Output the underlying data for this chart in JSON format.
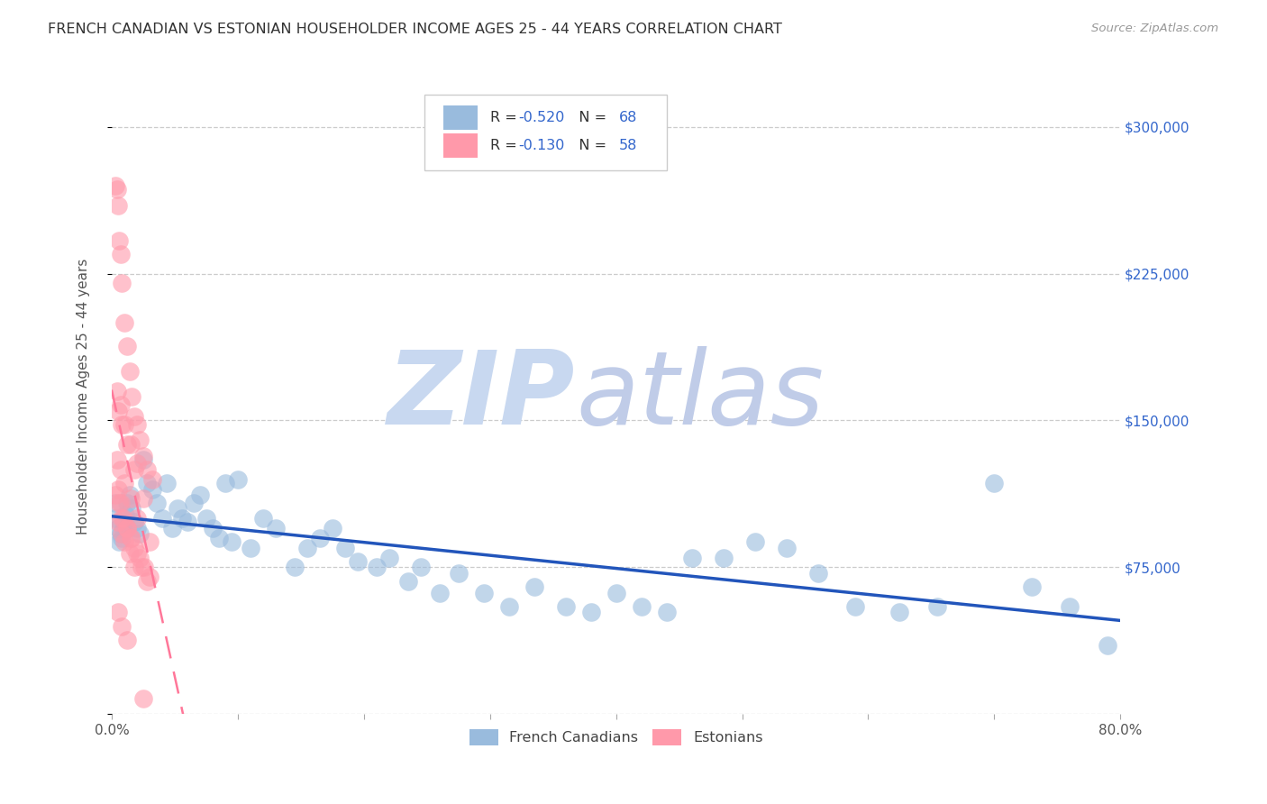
{
  "title": "FRENCH CANADIAN VS ESTONIAN HOUSEHOLDER INCOME AGES 25 - 44 YEARS CORRELATION CHART",
  "source": "Source: ZipAtlas.com",
  "ylabel": "Householder Income Ages 25 - 44 years",
  "xmin": 0.0,
  "xmax": 0.8,
  "ymin": 0,
  "ymax": 325000,
  "yticks": [
    0,
    75000,
    150000,
    225000,
    300000
  ],
  "ytick_labels_right": [
    "",
    "$75,000",
    "$150,000",
    "$225,000",
    "$300,000"
  ],
  "xticks": [
    0.0,
    0.1,
    0.2,
    0.3,
    0.4,
    0.5,
    0.6,
    0.7,
    0.8
  ],
  "r_french": -0.52,
  "n_french": 68,
  "r_estonian": -0.13,
  "n_estonian": 58,
  "color_blue": "#99BBDD",
  "color_pink": "#FF99AA",
  "color_blue_line": "#2255BB",
  "color_pink_line": "#FF7799",
  "watermark_zip_color": "#C8D8F0",
  "watermark_atlas_color": "#C0CCE8",
  "french_x": [
    0.002,
    0.003,
    0.005,
    0.006,
    0.007,
    0.008,
    0.009,
    0.01,
    0.011,
    0.012,
    0.014,
    0.016,
    0.018,
    0.02,
    0.022,
    0.025,
    0.028,
    0.032,
    0.036,
    0.04,
    0.044,
    0.048,
    0.052,
    0.056,
    0.06,
    0.065,
    0.07,
    0.075,
    0.08,
    0.085,
    0.09,
    0.095,
    0.1,
    0.11,
    0.12,
    0.13,
    0.145,
    0.155,
    0.165,
    0.175,
    0.185,
    0.195,
    0.21,
    0.22,
    0.235,
    0.245,
    0.26,
    0.275,
    0.295,
    0.315,
    0.335,
    0.36,
    0.38,
    0.4,
    0.42,
    0.44,
    0.46,
    0.485,
    0.51,
    0.535,
    0.56,
    0.59,
    0.625,
    0.655,
    0.7,
    0.73,
    0.76,
    0.79
  ],
  "french_y": [
    100000,
    108000,
    95000,
    88000,
    92000,
    90000,
    95000,
    98000,
    102000,
    108000,
    112000,
    105000,
    98000,
    95000,
    92000,
    130000,
    118000,
    115000,
    108000,
    100000,
    118000,
    95000,
    105000,
    100000,
    98000,
    108000,
    112000,
    100000,
    95000,
    90000,
    118000,
    88000,
    120000,
    85000,
    100000,
    95000,
    75000,
    85000,
    90000,
    95000,
    85000,
    78000,
    75000,
    80000,
    68000,
    75000,
    62000,
    72000,
    62000,
    55000,
    65000,
    55000,
    52000,
    62000,
    55000,
    52000,
    80000,
    80000,
    88000,
    85000,
    72000,
    55000,
    52000,
    55000,
    118000,
    65000,
    55000,
    35000
  ],
  "estonian_x": [
    0.003,
    0.004,
    0.005,
    0.006,
    0.007,
    0.008,
    0.01,
    0.012,
    0.014,
    0.016,
    0.018,
    0.02,
    0.022,
    0.025,
    0.028,
    0.032,
    0.005,
    0.007,
    0.009,
    0.012,
    0.015,
    0.018,
    0.022,
    0.026,
    0.03,
    0.005,
    0.008,
    0.01,
    0.014,
    0.018,
    0.003,
    0.006,
    0.008,
    0.012,
    0.016,
    0.02,
    0.024,
    0.028,
    0.004,
    0.007,
    0.01,
    0.015,
    0.02,
    0.03,
    0.005,
    0.008,
    0.012,
    0.018,
    0.025,
    0.004,
    0.007,
    0.01,
    0.015,
    0.02,
    0.005,
    0.008,
    0.012,
    0.025
  ],
  "estonian_y": [
    270000,
    268000,
    260000,
    242000,
    235000,
    220000,
    200000,
    188000,
    175000,
    162000,
    152000,
    148000,
    140000,
    132000,
    125000,
    120000,
    115000,
    108000,
    100000,
    95000,
    90000,
    85000,
    80000,
    75000,
    70000,
    98000,
    92000,
    88000,
    82000,
    75000,
    112000,
    108000,
    100000,
    95000,
    90000,
    82000,
    75000,
    68000,
    130000,
    125000,
    118000,
    110000,
    100000,
    88000,
    155000,
    148000,
    138000,
    125000,
    110000,
    165000,
    158000,
    148000,
    138000,
    128000,
    52000,
    45000,
    38000,
    8000
  ]
}
